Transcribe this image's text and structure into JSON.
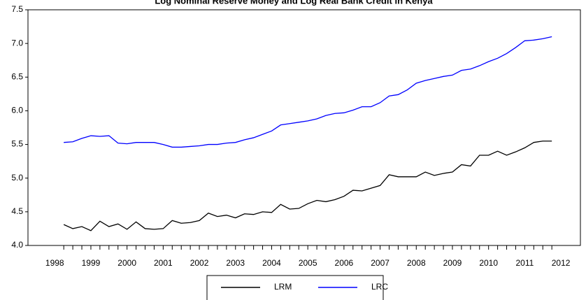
{
  "chart_data": {
    "type": "line",
    "title": "Log Nominal Reserve Money and Log Real Bank Credit in Kenya",
    "x": [
      1998.25,
      1998.5,
      1998.75,
      1999,
      1999.25,
      1999.5,
      1999.75,
      2000,
      2000.25,
      2000.5,
      2000.75,
      2001,
      2001.25,
      2001.5,
      2001.75,
      2002,
      2002.25,
      2002.5,
      2002.75,
      2003,
      2003.25,
      2003.5,
      2003.75,
      2004,
      2004.25,
      2004.5,
      2004.75,
      2005,
      2005.25,
      2005.5,
      2005.75,
      2006,
      2006.25,
      2006.5,
      2006.75,
      2007,
      2007.25,
      2007.5,
      2007.75,
      2008,
      2008.25,
      2008.5,
      2008.75,
      2009,
      2009.25,
      2009.5,
      2009.75,
      2010,
      2010.25,
      2010.5,
      2010.75,
      2011,
      2011.25,
      2011.5,
      2011.75
    ],
    "series": [
      {
        "name": "LRM",
        "color": "#000000",
        "values": [
          4.31,
          4.25,
          4.28,
          4.22,
          4.36,
          4.28,
          4.32,
          4.24,
          4.35,
          4.25,
          4.24,
          4.25,
          4.37,
          4.33,
          4.34,
          4.37,
          4.48,
          4.43,
          4.45,
          4.41,
          4.47,
          4.46,
          4.5,
          4.49,
          4.61,
          4.54,
          4.55,
          4.62,
          4.67,
          4.65,
          4.68,
          4.73,
          4.82,
          4.81,
          4.85,
          4.89,
          5.05,
          5.02,
          5.02,
          5.02,
          5.09,
          5.04,
          5.07,
          5.09,
          5.2,
          5.18,
          5.34,
          5.34,
          5.4,
          5.34,
          5.39,
          5.45,
          5.53,
          5.55,
          5.55
        ]
      },
      {
        "name": "LRC",
        "color": "#0000ff",
        "values": [
          5.53,
          5.54,
          5.59,
          5.63,
          5.62,
          5.63,
          5.52,
          5.51,
          5.53,
          5.53,
          5.53,
          5.5,
          5.46,
          5.46,
          5.47,
          5.48,
          5.5,
          5.5,
          5.52,
          5.53,
          5.57,
          5.6,
          5.65,
          5.7,
          5.79,
          5.81,
          5.83,
          5.85,
          5.88,
          5.93,
          5.96,
          5.97,
          6.01,
          6.06,
          6.06,
          6.12,
          6.22,
          6.24,
          6.31,
          6.41,
          6.45,
          6.48,
          6.51,
          6.53,
          6.6,
          6.62,
          6.67,
          6.73,
          6.78,
          6.85,
          6.94,
          7.04,
          7.05,
          7.07,
          7.1
        ]
      }
    ],
    "xlim": [
      1997.26,
      2012.54
    ],
    "xticks": [
      1998,
      1999,
      2000,
      2001,
      2002,
      2003,
      2004,
      2005,
      2006,
      2007,
      2008,
      2009,
      2010,
      2011,
      2012
    ],
    "ylim": [
      4.0,
      7.5
    ],
    "yticks": [
      {
        "value": 4.0,
        "label": "4.0"
      },
      {
        "value": 4.5,
        "label": "4.5"
      },
      {
        "value": 5.0,
        "label": "5.0"
      },
      {
        "value": 5.5,
        "label": "5.5"
      },
      {
        "value": 6.0,
        "label": "6.0"
      },
      {
        "value": 6.5,
        "label": "6.5"
      },
      {
        "value": 7.0,
        "label": "7.0"
      },
      {
        "value": 7.5,
        "label": "7.5"
      }
    ],
    "grid": false,
    "legend": "bottom"
  }
}
